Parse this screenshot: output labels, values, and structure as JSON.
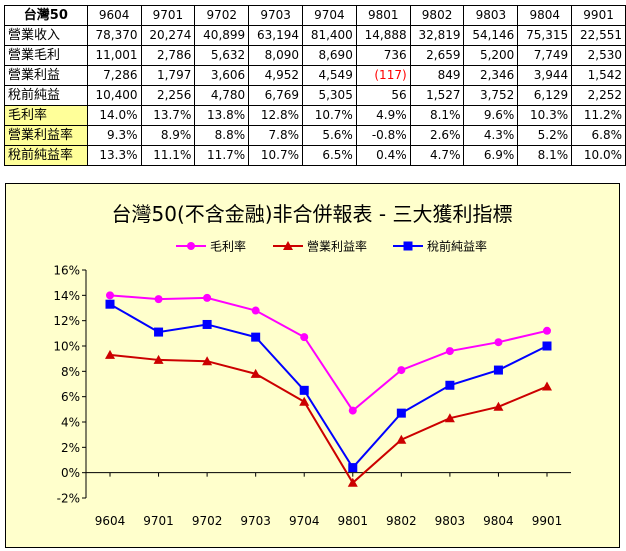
{
  "table": {
    "corner": "台灣50",
    "columns": [
      "9604",
      "9701",
      "9702",
      "9703",
      "9704",
      "9801",
      "9802",
      "9803",
      "9804",
      "9901"
    ],
    "rows": [
      {
        "label": "營業收入",
        "values": [
          "78,370",
          "20,274",
          "40,899",
          "63,194",
          "81,400",
          "14,888",
          "32,819",
          "54,146",
          "75,315",
          "22,551"
        ]
      },
      {
        "label": "營業毛利",
        "values": [
          "11,001",
          "2,786",
          "5,632",
          "8,090",
          "8,690",
          "736",
          "2,659",
          "5,200",
          "7,749",
          "2,530"
        ]
      },
      {
        "label": "營業利益",
        "values": [
          "7,286",
          "1,797",
          "3,606",
          "4,952",
          "4,549",
          "(117)",
          "849",
          "2,346",
          "3,944",
          "1,542"
        ]
      },
      {
        "label": "稅前純益",
        "values": [
          "10,400",
          "2,256",
          "4,780",
          "6,769",
          "5,305",
          "56",
          "1,527",
          "3,752",
          "6,129",
          "2,252"
        ]
      },
      {
        "label": "毛利率",
        "values": [
          "14.0%",
          "13.7%",
          "13.8%",
          "12.8%",
          "10.7%",
          "4.9%",
          "8.1%",
          "9.6%",
          "10.3%",
          "11.2%"
        ]
      },
      {
        "label": "營業利益率",
        "values": [
          "9.3%",
          "8.9%",
          "8.8%",
          "7.8%",
          "5.6%",
          "-0.8%",
          "2.6%",
          "4.3%",
          "5.2%",
          "6.8%"
        ]
      },
      {
        "label": "稅前純益率",
        "values": [
          "13.3%",
          "11.1%",
          "11.7%",
          "10.7%",
          "6.5%",
          "0.4%",
          "4.7%",
          "6.9%",
          "8.1%",
          "10.0%"
        ]
      }
    ],
    "negative_color": "#ff0000",
    "rate_label_bg": "#ffff99"
  },
  "chart_data": {
    "type": "line",
    "title": "台灣50(不含金融)非合併報表 - 三大獲利指標",
    "categories": [
      "9604",
      "9701",
      "9702",
      "9703",
      "9704",
      "9801",
      "9802",
      "9803",
      "9804",
      "9901"
    ],
    "series": [
      {
        "name": "毛利率",
        "color": "#ff00ff",
        "marker": "circle",
        "values": [
          14.0,
          13.7,
          13.8,
          12.8,
          10.7,
          4.9,
          8.1,
          9.6,
          10.3,
          11.2
        ]
      },
      {
        "name": "營業利益率",
        "color": "#cc0000",
        "marker": "triangle",
        "values": [
          9.3,
          8.9,
          8.8,
          7.8,
          5.6,
          -0.8,
          2.6,
          4.3,
          5.2,
          6.8
        ]
      },
      {
        "name": "稅前純益率",
        "color": "#0000ff",
        "marker": "square",
        "values": [
          13.3,
          11.1,
          11.7,
          10.7,
          6.5,
          0.4,
          4.7,
          6.9,
          8.1,
          10.0
        ]
      }
    ],
    "ylim": [
      -2,
      16
    ],
    "ytick_step": 2,
    "ytick_suffix": "%",
    "legend_position": "top",
    "grid": false,
    "background": "#ffffcc"
  }
}
